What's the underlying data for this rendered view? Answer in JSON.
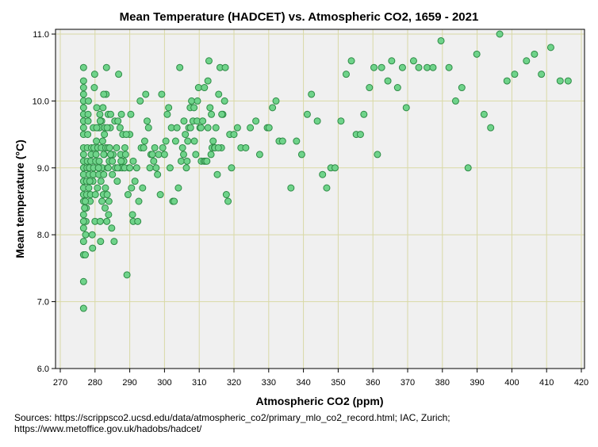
{
  "chart_data": {
    "type": "scatter",
    "title": "Mean Temperature (HADCET) vs. Atmospheric CO2, 1659 - 2021",
    "xlabel": "Atmospheric CO2 (ppm)",
    "ylabel": "Mean temperature (°C)",
    "xlim": [
      270,
      420
    ],
    "ylim": [
      6.0,
      11.0
    ],
    "xticks": [
      "270",
      "280",
      "290",
      "300",
      "310",
      "320",
      "330",
      "340",
      "350",
      "360",
      "370",
      "380",
      "390",
      "400",
      "410",
      "420"
    ],
    "yticks": [
      "6.0",
      "7.0",
      "8.0",
      "9.0",
      "10.0",
      "11.0"
    ],
    "grid": true,
    "colors": {
      "marker_fill": "#6fd38a",
      "marker_edge": "#2e8b46",
      "plot_bg": "#f0f0f0",
      "grid": "#d9d9a6"
    },
    "points": [
      [
        276.7,
        6.9
      ],
      [
        276.7,
        7.3
      ],
      [
        276.7,
        7.7
      ],
      [
        276.7,
        7.9
      ],
      [
        276.7,
        8.1
      ],
      [
        276.7,
        8.3
      ],
      [
        276.7,
        8.5
      ],
      [
        276.7,
        8.6
      ],
      [
        276.7,
        8.7
      ],
      [
        276.7,
        8.8
      ],
      [
        276.7,
        8.9
      ],
      [
        276.7,
        9.0
      ],
      [
        276.7,
        9.1
      ],
      [
        276.7,
        9.2
      ],
      [
        276.7,
        9.3
      ],
      [
        276.7,
        9.5
      ],
      [
        276.7,
        9.6
      ],
      [
        276.7,
        9.7
      ],
      [
        276.7,
        9.8
      ],
      [
        276.7,
        9.9
      ],
      [
        276.7,
        10.0
      ],
      [
        276.7,
        10.1
      ],
      [
        276.7,
        10.2
      ],
      [
        276.7,
        10.3
      ],
      [
        276.7,
        10.5
      ],
      [
        277.2,
        7.7
      ],
      [
        277.3,
        8.0
      ],
      [
        277.4,
        8.2
      ],
      [
        277.5,
        8.4
      ],
      [
        277.6,
        8.6
      ],
      [
        277.6,
        8.8
      ],
      [
        277.7,
        9.0
      ],
      [
        277.8,
        9.1
      ],
      [
        277.8,
        9.3
      ],
      [
        277.9,
        9.5
      ],
      [
        278.0,
        9.7
      ],
      [
        278.0,
        9.8
      ],
      [
        278.1,
        10.0
      ],
      [
        278.2,
        8.7
      ],
      [
        278.3,
        8.9
      ],
      [
        278.4,
        9.0
      ],
      [
        278.6,
        8.5
      ],
      [
        278.7,
        8.6
      ],
      [
        278.8,
        9.1
      ],
      [
        278.9,
        9.2
      ],
      [
        279.0,
        9.3
      ],
      [
        279.2,
        8.0
      ],
      [
        279.3,
        7.8
      ],
      [
        279.4,
        8.8
      ],
      [
        279.5,
        8.9
      ],
      [
        279.6,
        9.0
      ],
      [
        279.7,
        9.3
      ],
      [
        279.8,
        10.2
      ],
      [
        279.9,
        10.4
      ],
      [
        280.0,
        8.2
      ],
      [
        280.1,
        8.6
      ],
      [
        280.2,
        9.1
      ],
      [
        280.3,
        9.2
      ],
      [
        280.4,
        9.4
      ],
      [
        280.5,
        9.9
      ],
      [
        280.7,
        8.7
      ],
      [
        280.8,
        9.3
      ],
      [
        280.9,
        9.6
      ],
      [
        281.0,
        9.0
      ],
      [
        281.1,
        8.9
      ],
      [
        281.2,
        9.1
      ],
      [
        281.3,
        9.6
      ],
      [
        281.4,
        9.8
      ],
      [
        281.5,
        8.2
      ],
      [
        281.6,
        7.9
      ],
      [
        281.7,
        8.8
      ],
      [
        281.8,
        9.3
      ],
      [
        281.9,
        9.7
      ],
      [
        282.0,
        8.5
      ],
      [
        282.1,
        9.0
      ],
      [
        282.2,
        9.4
      ],
      [
        282.3,
        9.9
      ],
      [
        282.4,
        8.6
      ],
      [
        282.5,
        8.9
      ],
      [
        282.6,
        9.2
      ],
      [
        282.7,
        9.5
      ],
      [
        282.8,
        9.6
      ],
      [
        282.9,
        8.4
      ],
      [
        283.0,
        8.7
      ],
      [
        283.1,
        9.3
      ],
      [
        283.2,
        10.1
      ],
      [
        283.3,
        10.5
      ],
      [
        283.4,
        8.2
      ],
      [
        283.5,
        8.6
      ],
      [
        283.6,
        9.0
      ],
      [
        283.7,
        9.3
      ],
      [
        283.8,
        9.8
      ],
      [
        283.9,
        8.3
      ],
      [
        284.0,
        8.5
      ],
      [
        284.1,
        9.1
      ],
      [
        284.2,
        9.3
      ],
      [
        284.4,
        9.6
      ],
      [
        284.5,
        9.8
      ],
      [
        284.8,
        8.1
      ],
      [
        285.0,
        8.9
      ],
      [
        285.2,
        9.2
      ],
      [
        285.5,
        7.9
      ],
      [
        285.7,
        9.7
      ],
      [
        285.9,
        9.0
      ],
      [
        286.2,
        9.3
      ],
      [
        286.4,
        8.8
      ],
      [
        286.6,
        9.7
      ],
      [
        286.8,
        10.4
      ],
      [
        287.0,
        9.0
      ],
      [
        287.2,
        9.6
      ],
      [
        287.4,
        9.2
      ],
      [
        287.6,
        9.8
      ],
      [
        287.8,
        9.0
      ],
      [
        288.0,
        9.5
      ],
      [
        288.3,
        9.1
      ],
      [
        288.6,
        9.3
      ],
      [
        288.8,
        9.2
      ],
      [
        289.2,
        7.4
      ],
      [
        289.5,
        8.6
      ],
      [
        289.8,
        9.0
      ],
      [
        290.0,
        9.5
      ],
      [
        290.3,
        9.8
      ],
      [
        290.5,
        8.7
      ],
      [
        290.8,
        8.3
      ],
      [
        291.0,
        8.2
      ],
      [
        291.5,
        8.8
      ],
      [
        292.0,
        9.0
      ],
      [
        292.3,
        8.2
      ],
      [
        292.6,
        8.5
      ],
      [
        293.0,
        10.0
      ],
      [
        293.3,
        9.3
      ],
      [
        293.7,
        8.7
      ],
      [
        294.0,
        9.3
      ],
      [
        294.3,
        9.4
      ],
      [
        294.6,
        10.1
      ],
      [
        295.0,
        9.7
      ],
      [
        295.4,
        9.6
      ],
      [
        295.8,
        9.0
      ],
      [
        296.1,
        9.2
      ],
      [
        296.5,
        9.2
      ],
      [
        296.9,
        9.1
      ],
      [
        297.2,
        9.3
      ],
      [
        297.6,
        9.0
      ],
      [
        298.0,
        8.9
      ],
      [
        298.3,
        9.2
      ],
      [
        298.8,
        8.6
      ],
      [
        299.2,
        10.1
      ],
      [
        299.5,
        9.3
      ],
      [
        300.0,
        9.2
      ],
      [
        300.4,
        9.4
      ],
      [
        300.8,
        9.8
      ],
      [
        301.2,
        9.9
      ],
      [
        301.6,
        9.0
      ],
      [
        302.0,
        9.6
      ],
      [
        302.4,
        8.5
      ],
      [
        302.8,
        8.5
      ],
      [
        303.2,
        9.4
      ],
      [
        303.6,
        9.6
      ],
      [
        304.0,
        8.7
      ],
      [
        304.4,
        10.5
      ],
      [
        304.8,
        9.1
      ],
      [
        305.2,
        9.3
      ],
      [
        305.6,
        9.7
      ],
      [
        306.0,
        9.5
      ],
      [
        306.3,
        9.0
      ],
      [
        306.7,
        9.4
      ],
      [
        307.0,
        9.6
      ],
      [
        307.4,
        9.9
      ],
      [
        307.8,
        10.0
      ],
      [
        308.2,
        9.7
      ],
      [
        308.6,
        9.4
      ],
      [
        309.0,
        9.2
      ],
      [
        309.4,
        9.7
      ],
      [
        309.8,
        10.2
      ],
      [
        310.2,
        9.6
      ],
      [
        310.6,
        9.1
      ],
      [
        311.0,
        9.7
      ],
      [
        311.4,
        9.1
      ],
      [
        311.8,
        9.1
      ],
      [
        312.2,
        9.1
      ],
      [
        312.5,
        9.6
      ],
      [
        312.8,
        10.6
      ],
      [
        313.1,
        9.9
      ],
      [
        313.4,
        9.2
      ],
      [
        313.7,
        9.3
      ],
      [
        314.0,
        9.4
      ],
      [
        314.4,
        9.3
      ],
      [
        314.8,
        9.6
      ],
      [
        315.2,
        8.9
      ],
      [
        315.6,
        10.1
      ],
      [
        316.0,
        10.5
      ],
      [
        316.4,
        9.3
      ],
      [
        316.8,
        9.8
      ],
      [
        317.3,
        10.0
      ],
      [
        317.8,
        8.6
      ],
      [
        318.3,
        8.5
      ],
      [
        318.8,
        9.5
      ],
      [
        319.3,
        9.0
      ],
      [
        320.0,
        9.5
      ],
      [
        321.0,
        9.6
      ],
      [
        322.0,
        9.3
      ],
      [
        323.4,
        9.3
      ],
      [
        324.7,
        9.6
      ],
      [
        326.3,
        9.7
      ],
      [
        327.4,
        9.2
      ],
      [
        329.6,
        9.6
      ],
      [
        330.1,
        9.6
      ],
      [
        331.1,
        9.9
      ],
      [
        332.1,
        10.0
      ],
      [
        333.0,
        9.4
      ],
      [
        334.0,
        9.4
      ],
      [
        336.4,
        8.7
      ],
      [
        338.0,
        9.4
      ],
      [
        339.5,
        9.2
      ],
      [
        341.1,
        9.8
      ],
      [
        342.3,
        10.1
      ],
      [
        344.0,
        9.7
      ],
      [
        345.5,
        8.9
      ],
      [
        346.7,
        8.7
      ],
      [
        347.9,
        9.0
      ],
      [
        349.1,
        9.0
      ],
      [
        350.8,
        9.7
      ],
      [
        352.3,
        10.4
      ],
      [
        353.8,
        10.6
      ],
      [
        355.2,
        9.5
      ],
      [
        356.4,
        9.5
      ],
      [
        357.4,
        9.8
      ],
      [
        359.0,
        10.2
      ],
      [
        360.3,
        10.5
      ],
      [
        361.3,
        9.2
      ],
      [
        362.5,
        10.5
      ],
      [
        364.3,
        10.3
      ],
      [
        365.4,
        10.6
      ],
      [
        367.1,
        10.2
      ],
      [
        368.5,
        10.5
      ],
      [
        369.6,
        9.9
      ],
      [
        371.7,
        10.6
      ],
      [
        373.2,
        10.5
      ],
      [
        375.6,
        10.5
      ],
      [
        377.3,
        10.5
      ],
      [
        379.6,
        10.9
      ],
      [
        381.9,
        10.5
      ],
      [
        383.8,
        10.0
      ],
      [
        385.6,
        10.2
      ],
      [
        387.4,
        9.0
      ],
      [
        389.9,
        10.7
      ],
      [
        392.0,
        9.8
      ],
      [
        393.9,
        9.6
      ],
      [
        396.5,
        11.0
      ],
      [
        398.6,
        10.3
      ],
      [
        400.8,
        10.4
      ],
      [
        404.2,
        10.6
      ],
      [
        406.5,
        10.7
      ],
      [
        408.5,
        10.4
      ],
      [
        411.2,
        10.8
      ],
      [
        413.9,
        10.3
      ],
      [
        416.2,
        10.3
      ],
      [
        281.0,
        9.0
      ],
      [
        282.5,
        9.2
      ],
      [
        283.8,
        9.0
      ],
      [
        285.0,
        9.1
      ],
      [
        286.5,
        9.0
      ],
      [
        287.5,
        9.1
      ],
      [
        288.5,
        9.0
      ],
      [
        289.0,
        9.5
      ],
      [
        290.0,
        9.0
      ],
      [
        291.0,
        9.1
      ],
      [
        276.7,
        8.2
      ],
      [
        277.0,
        8.4
      ],
      [
        277.2,
        8.5
      ],
      [
        278.5,
        8.8
      ],
      [
        279.5,
        9.6
      ],
      [
        280.5,
        9.6
      ],
      [
        281.5,
        9.7
      ],
      [
        282.5,
        10.1
      ],
      [
        283.5,
        9.6
      ],
      [
        284.5,
        9.2
      ],
      [
        305.5,
        9.2
      ],
      [
        306.5,
        9.1
      ],
      [
        307.5,
        9.6
      ],
      [
        308.5,
        9.9
      ],
      [
        309.5,
        10.0
      ],
      [
        310.5,
        9.6
      ],
      [
        311.5,
        10.2
      ],
      [
        312.5,
        10.3
      ],
      [
        313.5,
        9.8
      ],
      [
        314.5,
        9.3
      ],
      [
        315.5,
        9.3
      ],
      [
        316.5,
        9.8
      ],
      [
        317.5,
        10.5
      ]
    ]
  },
  "sources_text": "Sources: https://scrippsco2.ucsd.edu/data/atmospheric_co2/primary_mlo_co2_record.html; IAC, Zurich; https://www.metoffice.gov.uk/hadobs/hadcet/"
}
